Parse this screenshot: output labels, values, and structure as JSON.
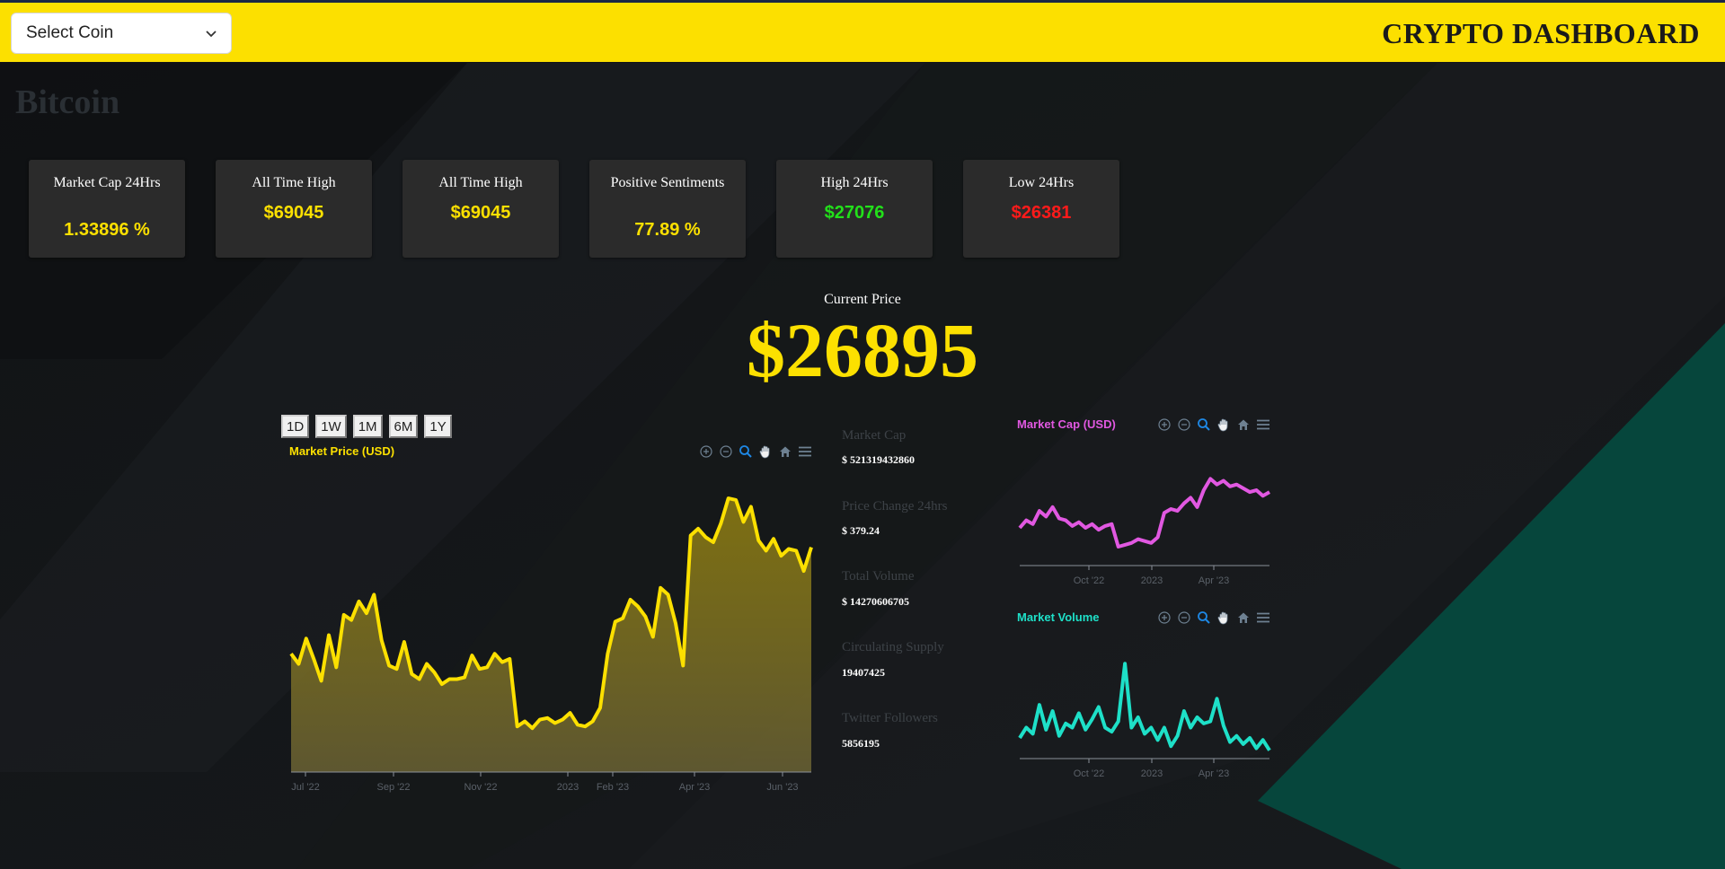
{
  "header": {
    "select_placeholder": "Select Coin",
    "title": "CRYPTO DASHBOARD"
  },
  "coin": {
    "name": "Bitcoin"
  },
  "cards": [
    {
      "label": "Market Cap 24Hrs",
      "value": "1.33896 %",
      "color": "#fce000"
    },
    {
      "label": "All Time High",
      "value": "$69045",
      "color": "#fce000"
    },
    {
      "label": "All Time High",
      "value": "$69045",
      "color": "#fce000"
    },
    {
      "label": "Positive Sentiments",
      "value": "77.89 %",
      "color": "#fce000"
    },
    {
      "label": "High 24Hrs",
      "value": "$27076",
      "color": "#22e01a"
    },
    {
      "label": "Low 24Hrs",
      "value": "$26381",
      "color": "#ff1a1a"
    }
  ],
  "current_price": {
    "label": "Current Price",
    "value": "$26895"
  },
  "ranges": [
    "1D",
    "1W",
    "1M",
    "6M",
    "1Y"
  ],
  "stats": [
    {
      "label": "Market Cap",
      "value": "$ 521319432860"
    },
    {
      "label": "Price Change 24hrs",
      "value": "$ 379.24"
    },
    {
      "label": "Total Volume",
      "value": "$ 14270606705"
    },
    {
      "label": "Circulating Supply",
      "value": "19407425"
    },
    {
      "label": "Twitter Followers",
      "value": "5856195"
    }
  ],
  "toolbar_icons": [
    "zoom-in-icon",
    "zoom-out-icon",
    "zoom-selection-icon",
    "pan-hand-icon",
    "home-reset-icon",
    "menu-icon"
  ],
  "colors": {
    "accent": "#fce000",
    "market_cap": "#e158e1",
    "market_volume": "#1ee0c8",
    "background": "#141719",
    "teal_corner": "#06463c"
  },
  "chart_data": [
    {
      "type": "area",
      "title": "Market Price (USD)",
      "color": "#fce000",
      "x_tick_labels": [
        "Jul '22",
        "Sep '22",
        "Nov '22",
        "2023",
        "Feb '23",
        "Apr '23",
        "Jun '23"
      ],
      "series": [
        {
          "name": "Market Price (USD)",
          "values": [
            21000,
            20400,
            21900,
            20700,
            19400,
            22100,
            20200,
            23300,
            23000,
            24100,
            23400,
            24500,
            21800,
            20300,
            20100,
            21700,
            19800,
            19500,
            20400,
            19900,
            19200,
            19500,
            19500,
            19600,
            20900,
            20100,
            20200,
            21000,
            20500,
            20700,
            16700,
            17000,
            16600,
            17100,
            17200,
            16900,
            17100,
            17500,
            16800,
            16700,
            17000,
            17800,
            21000,
            22900,
            23100,
            24200,
            23800,
            23200,
            22000,
            24900,
            24500,
            22800,
            20300,
            28000,
            28400,
            27900,
            27600,
            28700,
            30200,
            30100,
            28800,
            29700,
            27700,
            27100,
            27800,
            26800,
            27200,
            27100,
            25900,
            27300
          ]
        }
      ],
      "ylim": [
        14000,
        31000
      ]
    },
    {
      "type": "line",
      "title": "Market Cap (USD)",
      "color": "#e158e1",
      "x_tick_labels": [
        "Oct '22",
        "2023",
        "Apr '23"
      ],
      "series": [
        {
          "name": "Market Cap (USD)",
          "values": [
            0.4,
            0.48,
            0.44,
            0.58,
            0.52,
            0.62,
            0.5,
            0.48,
            0.42,
            0.46,
            0.4,
            0.44,
            0.38,
            0.42,
            0.44,
            0.2,
            0.22,
            0.24,
            0.28,
            0.26,
            0.24,
            0.3,
            0.56,
            0.6,
            0.58,
            0.66,
            0.72,
            0.62,
            0.8,
            0.92,
            0.86,
            0.9,
            0.84,
            0.86,
            0.82,
            0.78,
            0.8,
            0.74,
            0.78
          ]
        }
      ],
      "ylim": [
        0,
        1
      ]
    },
    {
      "type": "line",
      "title": "Market Volume",
      "color": "#1ee0c8",
      "x_tick_labels": [
        "Oct '22",
        "2023",
        "Apr '23"
      ],
      "series": [
        {
          "name": "Market Volume",
          "values": [
            0.2,
            0.3,
            0.24,
            0.52,
            0.28,
            0.46,
            0.22,
            0.34,
            0.3,
            0.44,
            0.28,
            0.38,
            0.5,
            0.3,
            0.26,
            0.36,
            0.92,
            0.3,
            0.4,
            0.24,
            0.3,
            0.18,
            0.3,
            0.12,
            0.22,
            0.46,
            0.3,
            0.4,
            0.34,
            0.36,
            0.58,
            0.32,
            0.16,
            0.22,
            0.14,
            0.2,
            0.1,
            0.18,
            0.08
          ]
        }
      ],
      "ylim": [
        0,
        1
      ]
    }
  ]
}
